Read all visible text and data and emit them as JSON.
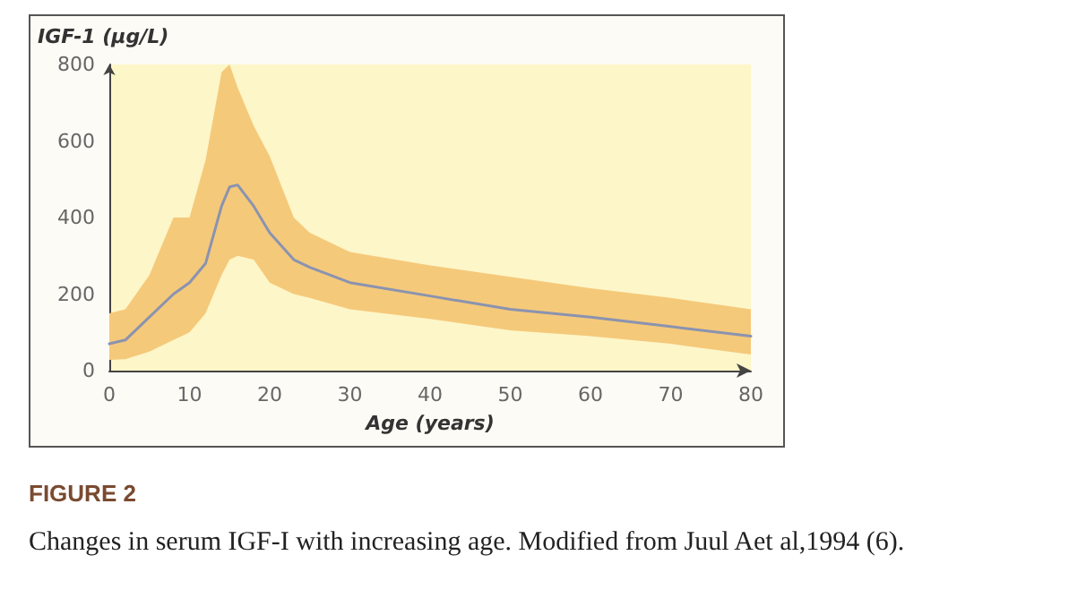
{
  "chart_data": {
    "type": "line",
    "xlabel": "Age (years)",
    "ylabel": "IGF-1 (µg/L)",
    "annotations": [
      "FIGURE 2",
      "Changes in serum IGF-I with increasing age. Modified from Juul Aet al,1994 (6)."
    ],
    "x": [
      0,
      2,
      5,
      8,
      10,
      12,
      14,
      15,
      16,
      18,
      20,
      23,
      25,
      30,
      40,
      50,
      60,
      70,
      80
    ],
    "series": [
      {
        "color": "#8a93b0",
        "values": [
          70,
          80,
          140,
          200,
          230,
          280,
          430,
          480,
          485,
          430,
          360,
          290,
          270,
          230,
          195,
          160,
          140,
          115,
          90
        ],
        "lower": [
          28,
          30,
          50,
          80,
          100,
          150,
          250,
          290,
          300,
          290,
          230,
          200,
          190,
          160,
          135,
          105,
          90,
          70,
          42
        ],
        "upper": [
          150,
          160,
          250,
          400,
          400,
          550,
          780,
          800,
          740,
          640,
          560,
          400,
          360,
          310,
          275,
          245,
          215,
          190,
          160
        ]
      }
    ],
    "xlim": [
      0,
      80
    ],
    "ylim": [
      0,
      800
    ],
    "xticks": [
      0,
      10,
      20,
      30,
      40,
      50,
      60,
      70,
      80
    ],
    "yticks": [
      0,
      200,
      400,
      600,
      800
    ],
    "grid": false,
    "marker": "none",
    "line_style": "solid"
  }
}
